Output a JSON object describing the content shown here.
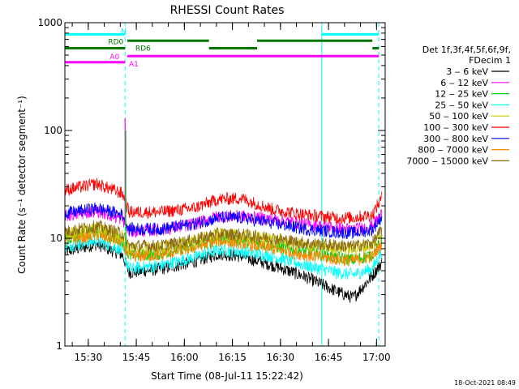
{
  "chart_data": {
    "type": "line",
    "title": "RHESSI Count Rates",
    "xlabel": "Start Time (08-Jul-11 15:22:42)",
    "ylabel": "Count Rate (s⁻¹ detector segment⁻¹)",
    "yscale": "log",
    "ylim": [
      1,
      1000
    ],
    "xlim_minutes_after_start": [
      0,
      100
    ],
    "x_ticks": [
      "15:30",
      "15:45",
      "16:00",
      "16:15",
      "16:30",
      "16:45",
      "17:00"
    ],
    "y_ticks": [
      "1",
      "10",
      "100",
      "1000"
    ],
    "legend": {
      "title_line1": "Det 1f,3f,4f,5f,6f,9f,",
      "title_line2": "FDecim 1",
      "placement": "right"
    },
    "series": [
      {
        "name": "3 ‒ 6 keV",
        "color": "#000000",
        "values": [
          7.5,
          8.8,
          7.0,
          4.8,
          5.2,
          6.0,
          7.2,
          6.8,
          5.6,
          4.4,
          3.2,
          2.8,
          4.5,
          6.0
        ]
      },
      {
        "name": "6 ‒ 12 keV",
        "color": "#ff00ff",
        "values": [
          16,
          18,
          15,
          11.5,
          12,
          13.5,
          16,
          16,
          15,
          13.5,
          12.5,
          12,
          13,
          17
        ]
      },
      {
        "name": "12 ‒ 25 keV",
        "color": "#00cc00",
        "values": [
          10,
          11.5,
          9.5,
          6.8,
          7.2,
          8.5,
          9.8,
          9.5,
          8.5,
          7.5,
          6.6,
          6.3,
          7.0,
          9.5
        ]
      },
      {
        "name": "25 ‒ 50 keV",
        "color": "#00ffff",
        "values": [
          8.5,
          9.5,
          7.8,
          5.2,
          5.6,
          6.6,
          7.8,
          7.5,
          6.8,
          5.6,
          4.8,
          4.6,
          5.2,
          7.6
        ]
      },
      {
        "name": "50 ‒ 100 keV",
        "color": "#cccc00",
        "values": [
          11,
          12.5,
          10.5,
          8.0,
          8.2,
          9.4,
          11,
          10.5,
          9.8,
          8.6,
          8.2,
          8.0,
          8.6,
          11.5
        ]
      },
      {
        "name": "100 ‒ 300 keV",
        "color": "#ff0000",
        "values": [
          28,
          32,
          26,
          17.5,
          17.5,
          19,
          23,
          23.5,
          18.5,
          16.5,
          15.5,
          15.5,
          16.5,
          24
        ]
      },
      {
        "name": "300 ‒ 800 keV",
        "color": "#0000ff",
        "values": [
          17,
          19,
          16.5,
          12.2,
          12.2,
          13.5,
          15.5,
          15.5,
          13.8,
          12.2,
          11.4,
          11.2,
          12,
          16
        ]
      },
      {
        "name": "800 ‒ 7000 keV",
        "color": "#ff8800",
        "values": [
          9.5,
          10.8,
          9.2,
          6.8,
          7.0,
          8.2,
          9.5,
          9.0,
          8.0,
          7.0,
          6.4,
          6.2,
          6.8,
          9.0
        ]
      },
      {
        "name": "7000 ‒ 15000 keV",
        "color": "#8b6914",
        "values": [
          11.5,
          13,
          11,
          8.5,
          8.5,
          9.6,
          11,
          10.8,
          10,
          9.0,
          8.6,
          8.4,
          9.0,
          12
        ]
      }
    ],
    "series_x_minutes": [
      0,
      10,
      18,
      20,
      30,
      40,
      48,
      55,
      65,
      75,
      85,
      90,
      96,
      99
    ],
    "spike": {
      "x_minutes": 18.8,
      "series": [
        "6 ‒ 12 keV",
        "12 ‒ 25 keV"
      ],
      "peak_values": [
        130,
        100
      ]
    },
    "vertical_lines": [
      {
        "x_minutes": 0.0,
        "style": "solid",
        "color": "#00ffff"
      },
      {
        "x_minutes": 18.8,
        "style": "dashed",
        "color": "#00ffff"
      },
      {
        "x_minutes": 80.2,
        "style": "solid",
        "color": "#00ffff"
      },
      {
        "x_minutes": 98.0,
        "style": "dashed",
        "color": "#00ffff"
      }
    ],
    "flag_bars": [
      {
        "row_value": 780,
        "color": "#00ffff",
        "segments": [
          [
            0,
            18.8
          ],
          [
            80.2,
            98.0
          ]
        ]
      },
      {
        "row_value": 680,
        "color": "#007700",
        "segments": [
          [
            19.5,
            45
          ],
          [
            60,
            96
          ]
        ]
      },
      {
        "row_value": 580,
        "color": "#007700",
        "segments": [
          [
            0,
            18.8
          ],
          [
            45,
            60
          ],
          [
            96,
            98
          ]
        ]
      },
      {
        "row_value": 490,
        "color": "#ff00ff",
        "segments": [
          [
            19.5,
            98
          ]
        ]
      },
      {
        "row_value": 430,
        "color": "#ff00ff",
        "segments": [
          [
            0,
            18.8
          ]
        ]
      }
    ],
    "flag_labels": [
      {
        "text": "N",
        "x_minutes": 17.5,
        "row_value": 850,
        "color": "#00ffff"
      },
      {
        "text": "RD0",
        "x_minutes": 13.5,
        "row_value": 680,
        "color": "#007700"
      },
      {
        "text": "RD6",
        "x_minutes": 22,
        "row_value": 590,
        "color": "#007700"
      },
      {
        "text": "A0",
        "x_minutes": 14,
        "row_value": 490,
        "color": "#ff00ff"
      },
      {
        "text": "A1",
        "x_minutes": 20,
        "row_value": 420,
        "color": "#ff00ff"
      }
    ]
  },
  "footer": {
    "timestamp": "18-Oct-2021 08:49"
  }
}
